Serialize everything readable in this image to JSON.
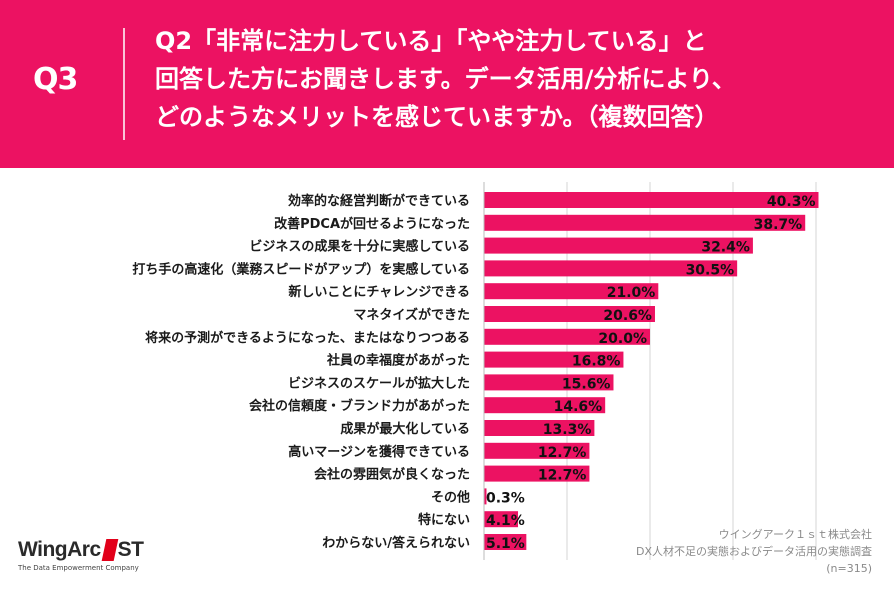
{
  "header": {
    "q_label": "Q3",
    "question_lines": [
      "Q2「非常に注力している」「やや注力している」と",
      "回答した方にお聞きします。データ活用/分析により、",
      "どのようなメリットを感じていますか。（複数回答）"
    ]
  },
  "chart_data": {
    "type": "bar",
    "orientation": "horizontal",
    "title": "",
    "xlabel": "",
    "ylabel": "",
    "xlim": [
      0,
      50
    ],
    "grid": true,
    "value_suffix": "%",
    "bar_color": "#ec1262",
    "categories": [
      "効率的な経営判断ができている",
      "改善PDCAが回せるようになった",
      "ビジネスの成果を十分に実感している",
      "打ち手の高速化（業務スピードがアップ）を実感している",
      "新しいことにチャレンジできる",
      "マネタイズができた",
      "将来の予測ができるようになった、またはなりつつある",
      "社員の幸福度があがった",
      "ビジネスのスケールが拡大した",
      "会社の信頼度・ブランド力があがった",
      "成果が最大化している",
      "高いマージンを獲得できている",
      "会社の雰囲気が良くなった",
      "その他",
      "特にない",
      "わからない/答えられない"
    ],
    "values": [
      40.3,
      38.7,
      32.4,
      30.5,
      21.0,
      20.6,
      20.0,
      16.8,
      15.6,
      14.6,
      13.3,
      12.7,
      12.7,
      0.3,
      4.1,
      5.1
    ]
  },
  "source": {
    "line1": "ウイングアーク１ｓｔ株式会社",
    "line2": "DX人材不足の実態およびデータ活用の実態調査",
    "line3": "(n=315)"
  },
  "logo": {
    "word_left": "WingArc",
    "word_right": "ST",
    "tagline": "The Data Empowerment Company"
  }
}
